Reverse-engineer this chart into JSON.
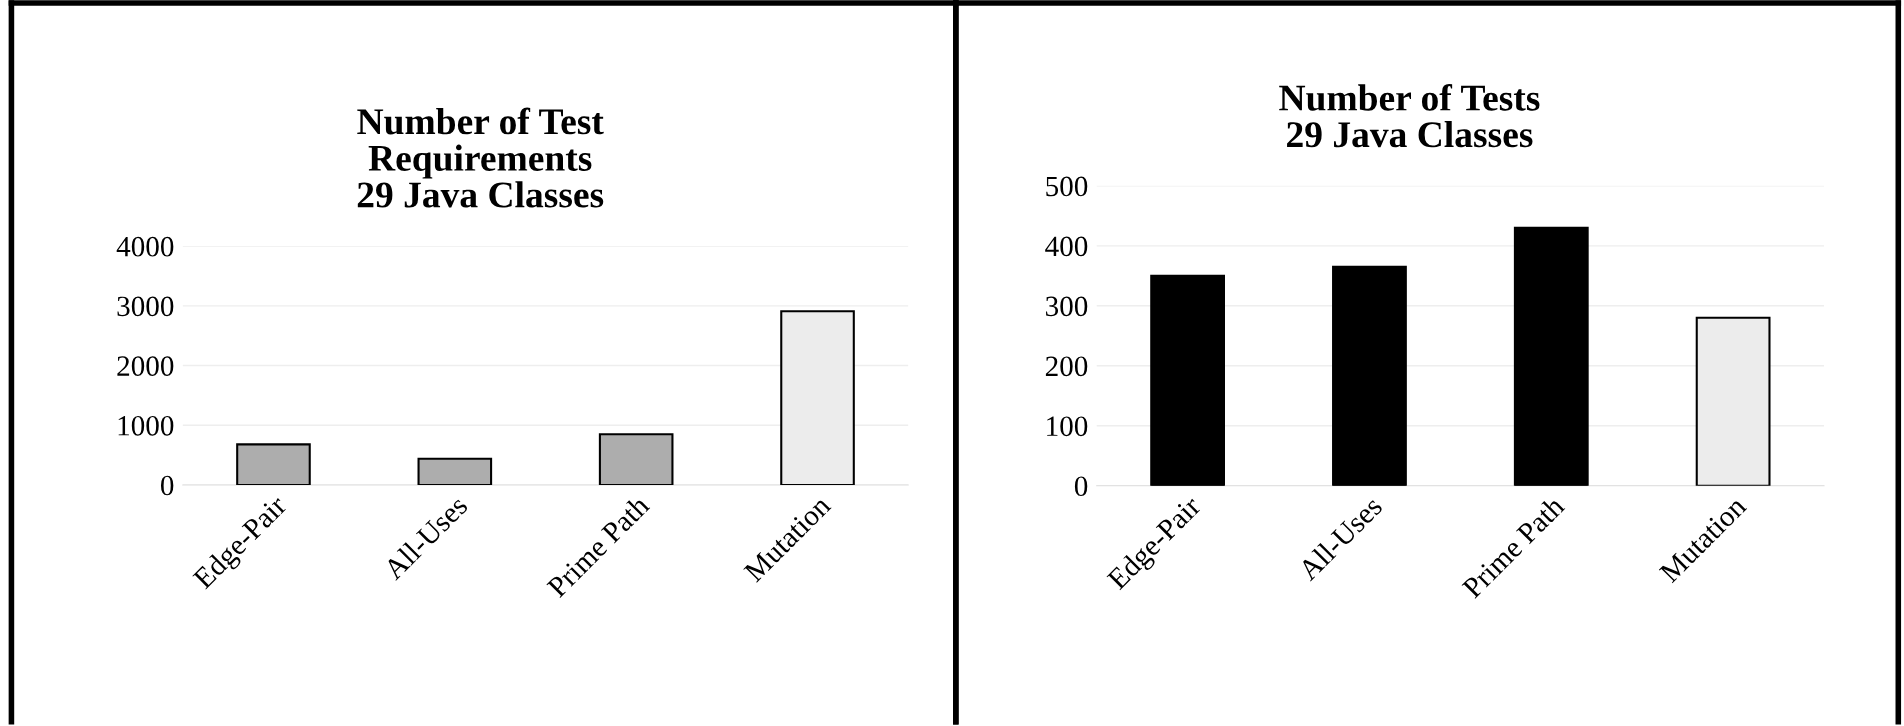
{
  "chart_data": [
    {
      "type": "bar",
      "title": "Number of Test\nRequirements\n29 Java Classes",
      "categories": [
        "Edge-Pair",
        "All-Uses",
        "Prime Path",
        "Mutation"
      ],
      "values": [
        680,
        440,
        850,
        2910
      ],
      "colors": [
        "#adadad",
        "#adadad",
        "#adadad",
        "#ececec"
      ],
      "ylim": [
        0,
        4000
      ],
      "yticks": [
        0,
        1000,
        2000,
        3000,
        4000
      ],
      "grid": "y"
    },
    {
      "type": "bar",
      "title": "Number of Tests\n29 Java Classes",
      "categories": [
        "Edge-Pair",
        "All-Uses",
        "Prime Path",
        "Mutation"
      ],
      "values": [
        350,
        365,
        430,
        280
      ],
      "colors": [
        "#000000",
        "#000000",
        "#000000",
        "#ececec"
      ],
      "ylim": [
        0,
        500
      ],
      "yticks": [
        0,
        100,
        200,
        300,
        400,
        500
      ],
      "grid": "y"
    }
  ]
}
